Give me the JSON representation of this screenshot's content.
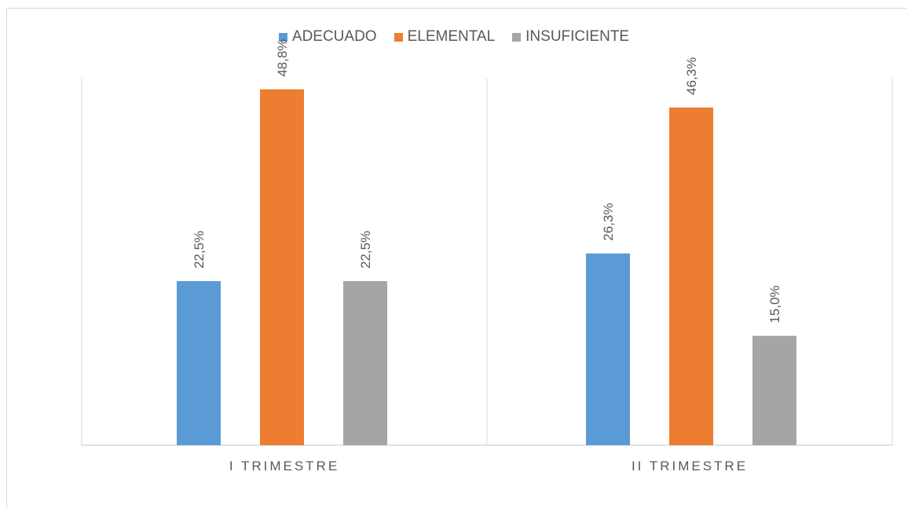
{
  "chart_data": {
    "type": "bar",
    "categories": [
      "I TRIMESTRE",
      "II TRIMESTRE"
    ],
    "series": [
      {
        "name": "ADECUADO",
        "values": [
          22.5,
          26.3
        ],
        "labels": [
          "22,5%",
          "26,3%"
        ],
        "color": "#5b9bd5"
      },
      {
        "name": "ELEMENTAL",
        "values": [
          48.8,
          46.3
        ],
        "labels": [
          "48,8%",
          "46,3%"
        ],
        "color": "#ed7d31"
      },
      {
        "name": "INSUFICIENTE",
        "values": [
          22.5,
          15.0
        ],
        "labels": [
          "22,5%",
          "15,0%"
        ],
        "color": "#a5a5a5"
      }
    ],
    "ylim": [
      0,
      50
    ],
    "legend": "top-center",
    "grid": false
  }
}
